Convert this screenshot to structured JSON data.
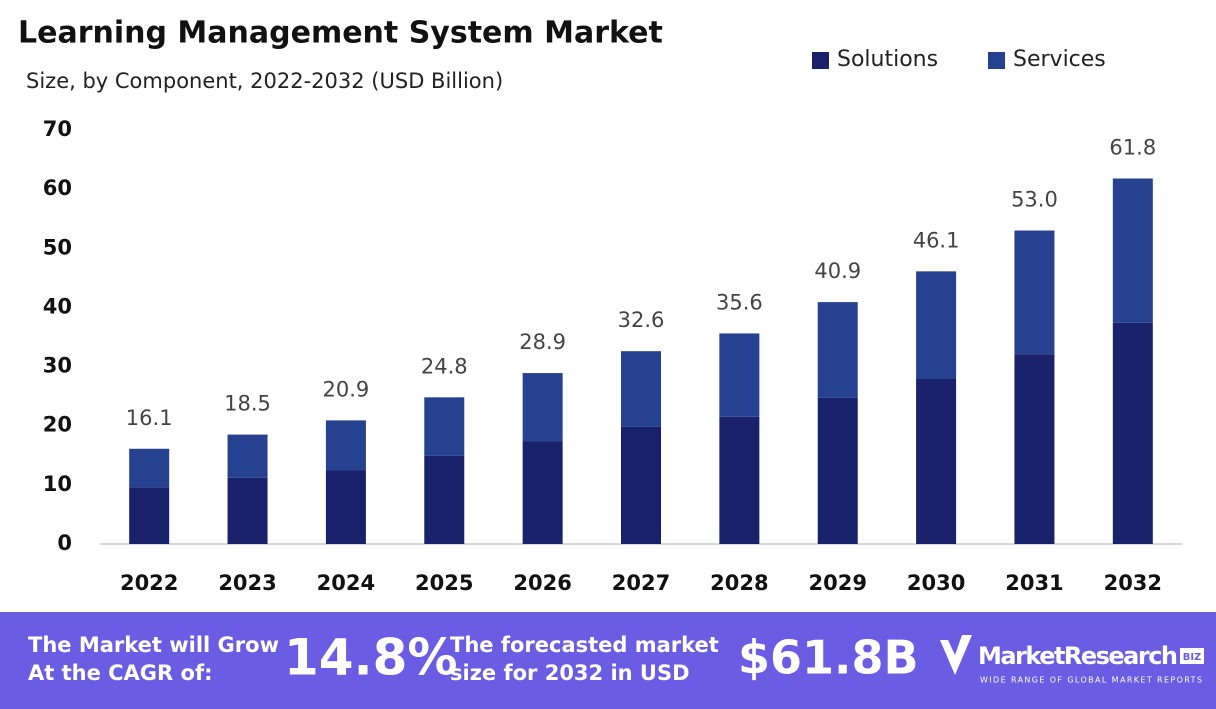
{
  "chart_data": {
    "type": "stacked_bar",
    "title": "Learning Management System Market",
    "subtitle": "Size, by Component, 2022-2032 (USD Billion)",
    "categories": [
      "2022",
      "2023",
      "2024",
      "2025",
      "2026",
      "2027",
      "2028",
      "2029",
      "2030",
      "2031",
      "2032"
    ],
    "series": [
      {
        "name": "Solutions",
        "color": "#19216a",
        "values": [
          9.6,
          11.2,
          12.5,
          14.9,
          17.4,
          19.8,
          21.5,
          24.7,
          27.9,
          32.1,
          37.4
        ]
      },
      {
        "name": "Services",
        "color": "#25418f",
        "values": [
          6.5,
          7.3,
          8.4,
          9.9,
          11.5,
          12.8,
          14.1,
          16.2,
          18.2,
          20.9,
          24.4
        ]
      }
    ],
    "total_labels": [
      "16.1",
      "18.5",
      "20.9",
      "24.8",
      "28.9",
      "32.6",
      "35.6",
      "40.9",
      "46.1",
      "53.0",
      "61.8"
    ],
    "ylim": [
      0,
      70
    ],
    "yticks": [
      0,
      10,
      20,
      30,
      40,
      50,
      60,
      70
    ],
    "grid": false,
    "legend": "top-right"
  },
  "banner": {
    "cagr_text": [
      "The Market will Grow",
      "At the CAGR of:"
    ],
    "cagr_value": "14.8%",
    "forecast_text": [
      "The forecasted market",
      "size for 2032 in USD"
    ],
    "forecast_value": "$61.8B",
    "logo_name": "MarketResearch",
    "logo_badge": "BIZ",
    "logo_tagline": "WIDE RANGE OF GLOBAL MARKET REPORTS"
  }
}
